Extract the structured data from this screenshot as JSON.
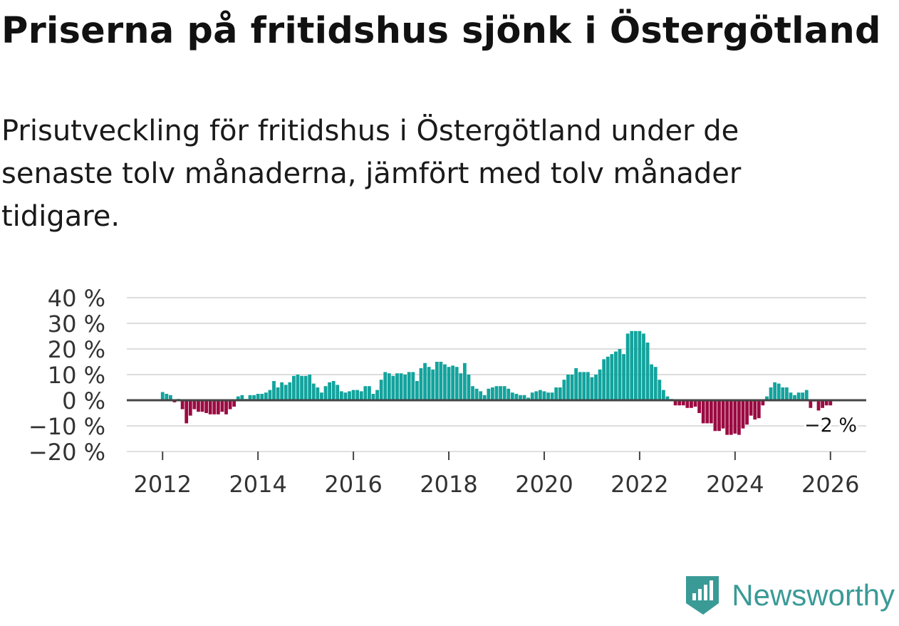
{
  "header": {
    "title": "Priserna på fritidshus sjönk i Östergötland",
    "subtitle": "Prisutveckling för fritidshus i Östergötland under de senaste tolv månaderna, jämfört med tolv månader tidigare."
  },
  "brand": {
    "name": "Newsworthy",
    "icon": "newsworthy-logo-icon"
  },
  "colors": {
    "positive": "#13a39d",
    "negative": "#9b0a42",
    "grid": "#dddddd",
    "zero": "#444444",
    "text": "#333333"
  },
  "chart_data": {
    "type": "bar",
    "title": "Priserna på fritidshus sjönk i Östergötland",
    "xlabel": "",
    "ylabel": "",
    "ylim": [
      -20,
      40
    ],
    "yticks": [
      40,
      30,
      20,
      10,
      0,
      -10,
      -20
    ],
    "ytick_labels": [
      "40 %",
      "30 %",
      "20 %",
      "10 %",
      "0 %",
      "−10 %",
      "−20 %"
    ],
    "xlim": [
      2011.25,
      2026.75
    ],
    "xticks": [
      2012,
      2014,
      2016,
      2018,
      2020,
      2022,
      2024,
      2026
    ],
    "xtick_labels": [
      "2012",
      "2014",
      "2016",
      "2018",
      "2020",
      "2022",
      "2024",
      "2026"
    ],
    "start": {
      "year": 2012,
      "month": 1
    },
    "annotation": {
      "text": "−2 %",
      "value": -2
    },
    "values": [
      3.2,
      2.5,
      2.0,
      -0.8,
      0.5,
      -3.5,
      -9.0,
      -6.0,
      -3.5,
      -4.5,
      -4.5,
      -5.0,
      -5.5,
      -5.5,
      -5.5,
      -4.5,
      -5.5,
      -3.5,
      -2.5,
      1.5,
      2.0,
      0.5,
      2.0,
      2.0,
      2.5,
      2.5,
      3.0,
      4.0,
      7.5,
      5.0,
      7.0,
      6.0,
      7.0,
      9.5,
      10.0,
      9.5,
      9.5,
      10.0,
      6.5,
      5.0,
      3.0,
      5.5,
      7.0,
      7.5,
      6.0,
      3.5,
      3.0,
      3.5,
      4.0,
      4.0,
      3.5,
      5.5,
      5.5,
      2.5,
      4.0,
      8.0,
      11.0,
      10.5,
      9.5,
      10.5,
      10.5,
      10.0,
      11.0,
      11.0,
      7.5,
      12.5,
      14.5,
      13.0,
      12.0,
      15.0,
      15.0,
      14.0,
      13.0,
      13.5,
      13.0,
      10.5,
      14.5,
      10.0,
      5.5,
      4.5,
      3.5,
      2.0,
      4.5,
      5.0,
      5.5,
      5.5,
      5.5,
      4.5,
      3.0,
      2.5,
      2.0,
      2.0,
      1.0,
      3.0,
      3.5,
      4.0,
      3.5,
      3.0,
      3.0,
      5.0,
      5.0,
      8.0,
      10.0,
      10.0,
      12.5,
      11.0,
      11.0,
      11.0,
      9.0,
      10.0,
      12.0,
      16.0,
      17.0,
      18.0,
      19.0,
      20.0,
      18.0,
      26.0,
      27.0,
      27.0,
      27.0,
      26.0,
      22.5,
      14.0,
      13.0,
      8.0,
      4.0,
      1.5,
      0.5,
      -2.0,
      -2.0,
      -2.0,
      -3.0,
      -3.0,
      -2.5,
      -5.0,
      -9.0,
      -9.0,
      -9.0,
      -12.0,
      -12.0,
      -11.0,
      -13.5,
      -13.5,
      -13.0,
      -13.5,
      -11.0,
      -9.5,
      -6.0,
      -7.5,
      -7.0,
      -2.0,
      1.5,
      5.0,
      7.0,
      6.5,
      5.0,
      5.0,
      3.0,
      2.0,
      3.0,
      3.0,
      4.0,
      -3.0,
      -0.5,
      -4.0,
      -3.0,
      -2.0,
      -2.0
    ]
  }
}
